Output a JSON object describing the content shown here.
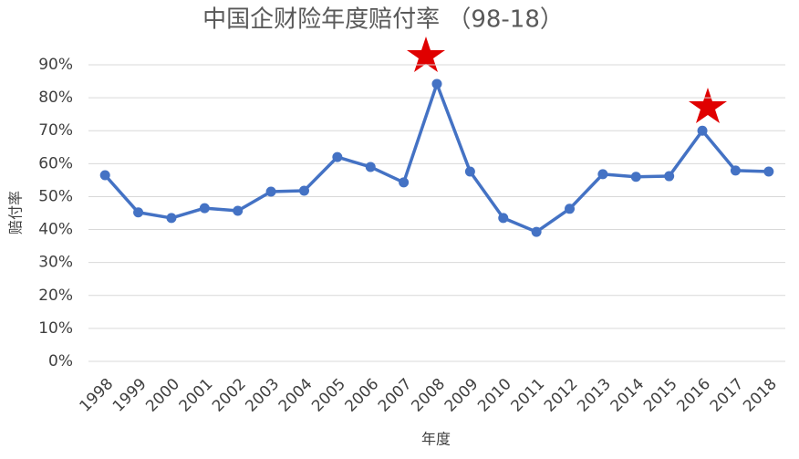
{
  "chart_data": {
    "type": "line",
    "title": "中国企财险年度赔付率 （98-18）",
    "x_label": "年度",
    "y_label": "赔付率",
    "categories": [
      "1998",
      "1999",
      "2000",
      "2001",
      "2002",
      "2003",
      "2004",
      "2005",
      "2006",
      "2007",
      "2008",
      "2009",
      "2010",
      "2011",
      "2012",
      "2013",
      "2014",
      "2015",
      "2016",
      "2017",
      "2018"
    ],
    "values": [
      56.5,
      45.2,
      43.5,
      46.5,
      45.7,
      51.5,
      51.8,
      62,
      59,
      54.3,
      84.2,
      57.6,
      43.5,
      39.3,
      46.3,
      56.8,
      56,
      56.2,
      70,
      57.9,
      57.6
    ],
    "color": "#4472c4",
    "ylim": [
      0,
      90
    ],
    "yticks": [
      {
        "value": 0,
        "label": "0%"
      },
      {
        "value": 10,
        "label": "10%"
      },
      {
        "value": 20,
        "label": "20%"
      },
      {
        "value": 30,
        "label": "30%"
      },
      {
        "value": 40,
        "label": "40%"
      },
      {
        "value": 50,
        "label": "50%"
      },
      {
        "value": 60,
        "label": "60%"
      },
      {
        "value": 70,
        "label": "70%"
      },
      {
        "value": 80,
        "label": "80%"
      },
      {
        "value": 90,
        "label": "90%"
      }
    ],
    "grid": true
  }
}
